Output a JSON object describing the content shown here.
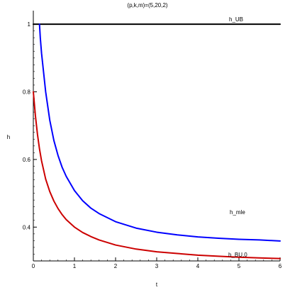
{
  "chart_data": {
    "type": "line",
    "title": "(p,k,m)=(5,20,2)",
    "xlabel": "t",
    "ylabel": "h",
    "xlim": [
      0,
      6
    ],
    "ylim": [
      0.3,
      1.04
    ],
    "grid": false,
    "x_ticks": [
      {
        "value": 0,
        "label": "0"
      },
      {
        "value": 1,
        "label": "1"
      },
      {
        "value": 2,
        "label": "2"
      },
      {
        "value": 3,
        "label": "3"
      },
      {
        "value": 4,
        "label": "4"
      },
      {
        "value": 5,
        "label": "5"
      },
      {
        "value": 6,
        "label": "6"
      }
    ],
    "y_ticks": [
      {
        "value": 0.4,
        "label": "0.4"
      },
      {
        "value": 0.6,
        "label": "0.6"
      },
      {
        "value": 0.8,
        "label": "0.8"
      },
      {
        "value": 1.0,
        "label": "1"
      }
    ],
    "series": [
      {
        "name": "h_UB",
        "color": "#000000",
        "x": [
          0,
          6
        ],
        "y": [
          1.0,
          1.0
        ]
      },
      {
        "name": "h_mle",
        "color": "#0000ff",
        "x": [
          0.15,
          0.17,
          0.2,
          0.25,
          0.3,
          0.4,
          0.5,
          0.6,
          0.7,
          0.8,
          1.0,
          1.2,
          1.4,
          1.6,
          2.0,
          2.5,
          3.0,
          3.5,
          4.0,
          4.5,
          5.0,
          5.5,
          6.0
        ],
        "y": [
          1.0,
          0.959,
          0.914,
          0.857,
          0.8,
          0.716,
          0.656,
          0.612,
          0.577,
          0.55,
          0.508,
          0.478,
          0.456,
          0.44,
          0.416,
          0.397,
          0.385,
          0.377,
          0.371,
          0.367,
          0.364,
          0.362,
          0.359
        ]
      },
      {
        "name": "h_BU,0",
        "color": "#cc0000",
        "x": [
          0,
          0.05,
          0.1,
          0.15,
          0.2,
          0.3,
          0.4,
          0.5,
          0.6,
          0.7,
          0.8,
          1.0,
          1.2,
          1.4,
          1.6,
          2.0,
          2.5,
          3.0,
          3.5,
          4.0,
          4.5,
          5.0,
          5.5,
          6.0
        ],
        "y": [
          0.8,
          0.73,
          0.675,
          0.631,
          0.596,
          0.542,
          0.505,
          0.477,
          0.455,
          0.437,
          0.422,
          0.4,
          0.384,
          0.372,
          0.362,
          0.347,
          0.335,
          0.327,
          0.322,
          0.317,
          0.314,
          0.311,
          0.309,
          0.307
        ]
      }
    ]
  }
}
